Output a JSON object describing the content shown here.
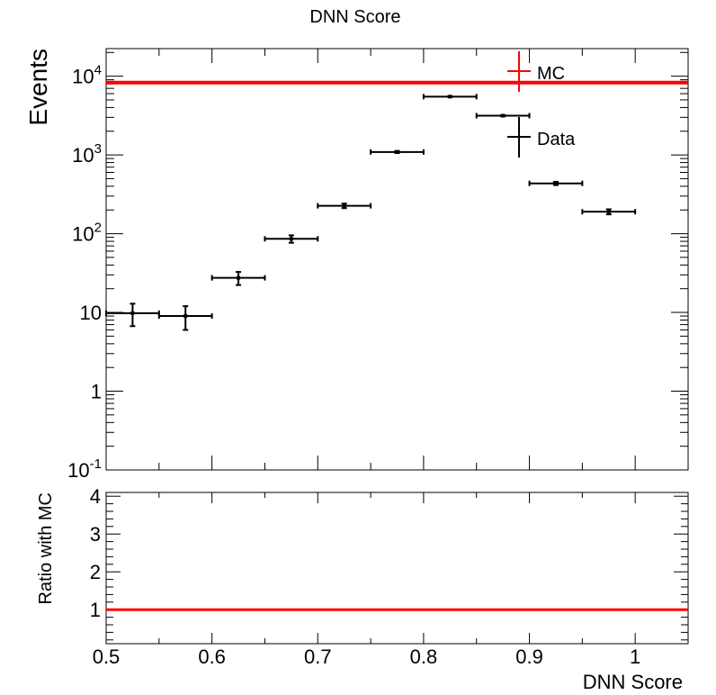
{
  "chart_data": {
    "type": "scatter",
    "title": "DNN Score",
    "xlabel": "DNN Score",
    "ylabel": "Events",
    "xlim": [
      0.5,
      1.05
    ],
    "ylim_log10": [
      -1,
      4.35
    ],
    "yscale": "log",
    "x_ticks": [
      "0.5",
      "0.6",
      "0.7",
      "0.8",
      "0.9",
      "1"
    ],
    "legend_position": "top-right",
    "series": [
      {
        "name": "Data",
        "color": "#000000",
        "points": [
          {
            "x": 0.525,
            "y": 9.8,
            "err": 3.1,
            "xerr": 0.025
          },
          {
            "x": 0.575,
            "y": 9.0,
            "err": 3.0,
            "xerr": 0.025
          },
          {
            "x": 0.625,
            "y": 27.5,
            "err": 5.2,
            "xerr": 0.025
          },
          {
            "x": 0.675,
            "y": 86,
            "err": 9.3,
            "xerr": 0.025
          },
          {
            "x": 0.725,
            "y": 226,
            "err": 15,
            "xerr": 0.025
          },
          {
            "x": 0.775,
            "y": 1090,
            "err": 33,
            "xerr": 0.025
          },
          {
            "x": 0.825,
            "y": 5500,
            "err": 74,
            "xerr": 0.025
          },
          {
            "x": 0.875,
            "y": 3150,
            "err": 56,
            "xerr": 0.025
          },
          {
            "x": 0.925,
            "y": 435,
            "err": 21,
            "xerr": 0.025
          },
          {
            "x": 0.975,
            "y": 190,
            "err": 14,
            "xerr": 0.025
          }
        ]
      },
      {
        "name": "MC",
        "color": "#ff0000",
        "constant_y": 8300
      }
    ],
    "ratio_panel": {
      "ylabel": "Ratio with MC",
      "ylim": [
        0.1,
        4.1
      ],
      "y_ticks": [
        "1",
        "2",
        "3",
        "4"
      ],
      "reference_line": 1,
      "line_color": "#ff0000"
    }
  }
}
